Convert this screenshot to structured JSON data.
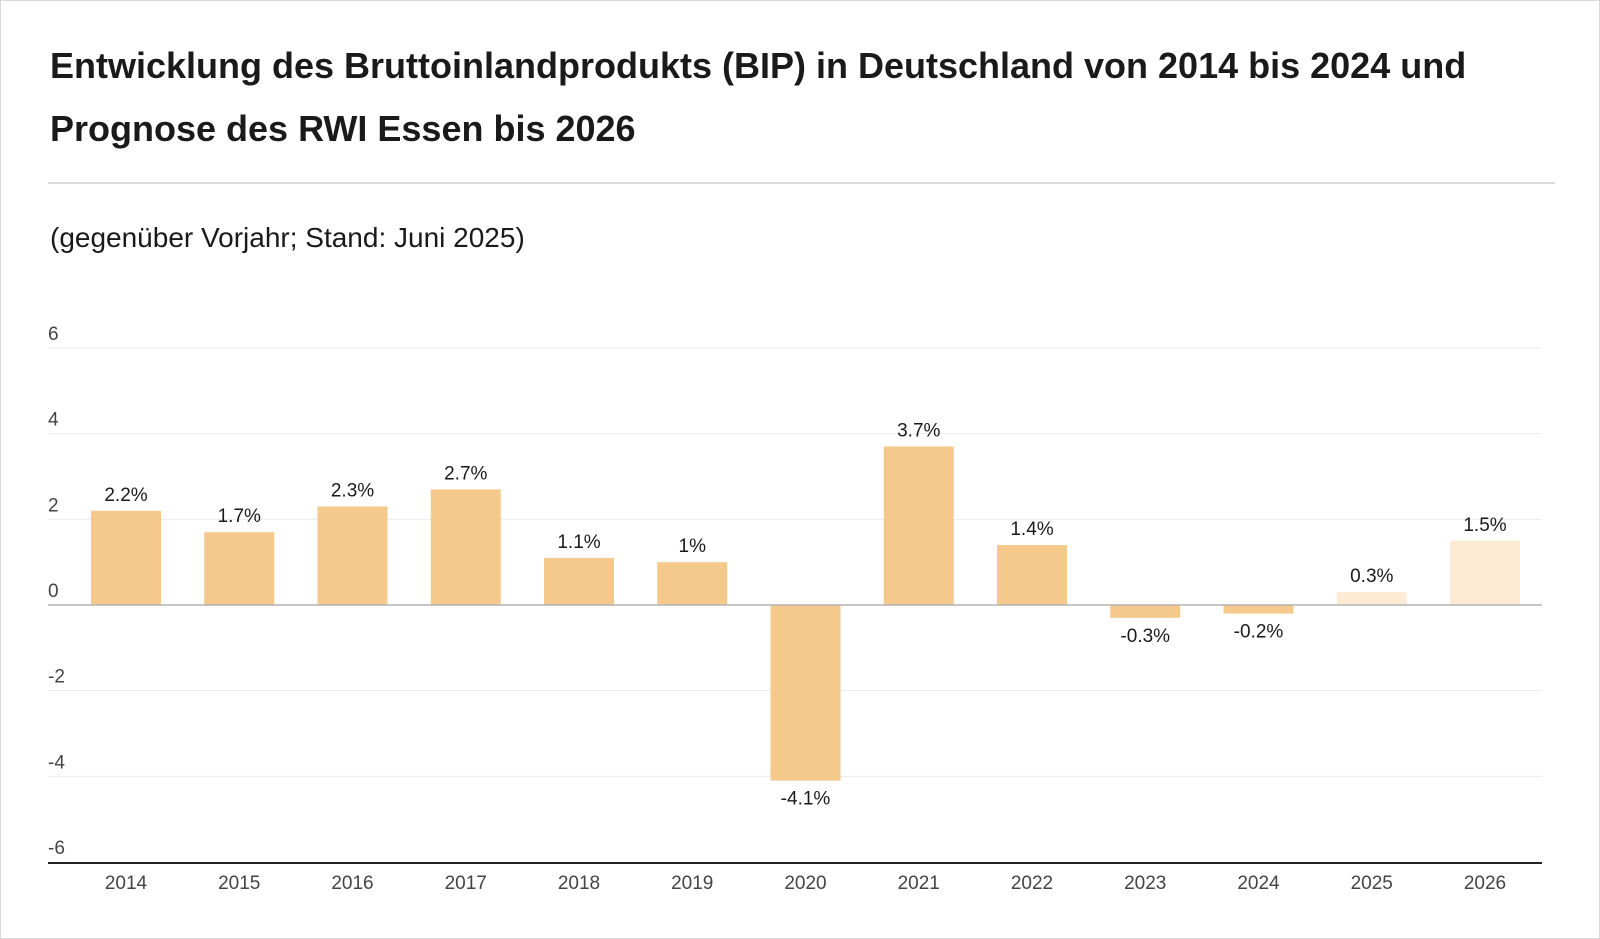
{
  "title": "Entwicklung des Bruttoinlandprodukts (BIP) in Deutschland von 2014 bis 2024 und Prognose des RWI Essen bis 2026",
  "subtitle": "(gegenüber Vorjahr; Stand: Juni 2025)",
  "chart_data": {
    "type": "bar",
    "title": "Entwicklung des Bruttoinlandprodukts (BIP) in Deutschland von 2014 bis 2024 und Prognose des RWI Essen bis 2026",
    "subtitle": "(gegenüber Vorjahr; Stand: Juni 2025)",
    "xlabel": "",
    "ylabel": "",
    "categories": [
      "2014",
      "2015",
      "2016",
      "2017",
      "2018",
      "2019",
      "2020",
      "2021",
      "2022",
      "2023",
      "2024",
      "2025",
      "2026"
    ],
    "values": [
      2.2,
      1.7,
      2.3,
      2.7,
      1.1,
      1,
      -4.1,
      3.7,
      1.4,
      -0.3,
      -0.2,
      0.3,
      1.5
    ],
    "data_labels": [
      "2.2%",
      "1.7%",
      "2.3%",
      "2.7%",
      "1.1%",
      "1%",
      "-4.1%",
      "3.7%",
      "1.4%",
      "-0.3%",
      "-0.2%",
      "0.3%",
      "1.5%"
    ],
    "forecast": [
      false,
      false,
      false,
      false,
      false,
      false,
      false,
      false,
      false,
      false,
      false,
      true,
      true
    ],
    "ylim": [
      -6,
      6
    ],
    "yticks": [
      6,
      4,
      2,
      0,
      -2,
      -4,
      -6
    ],
    "grid": true,
    "legend": "none",
    "colors": {
      "actual": "#f4c98b",
      "forecast": "#fdebd3",
      "grid": "#ebebeb",
      "zero_line": "#b3b3b3",
      "axis": "#222222",
      "text": "#1a1a1a",
      "tick_text": "#444444"
    }
  }
}
